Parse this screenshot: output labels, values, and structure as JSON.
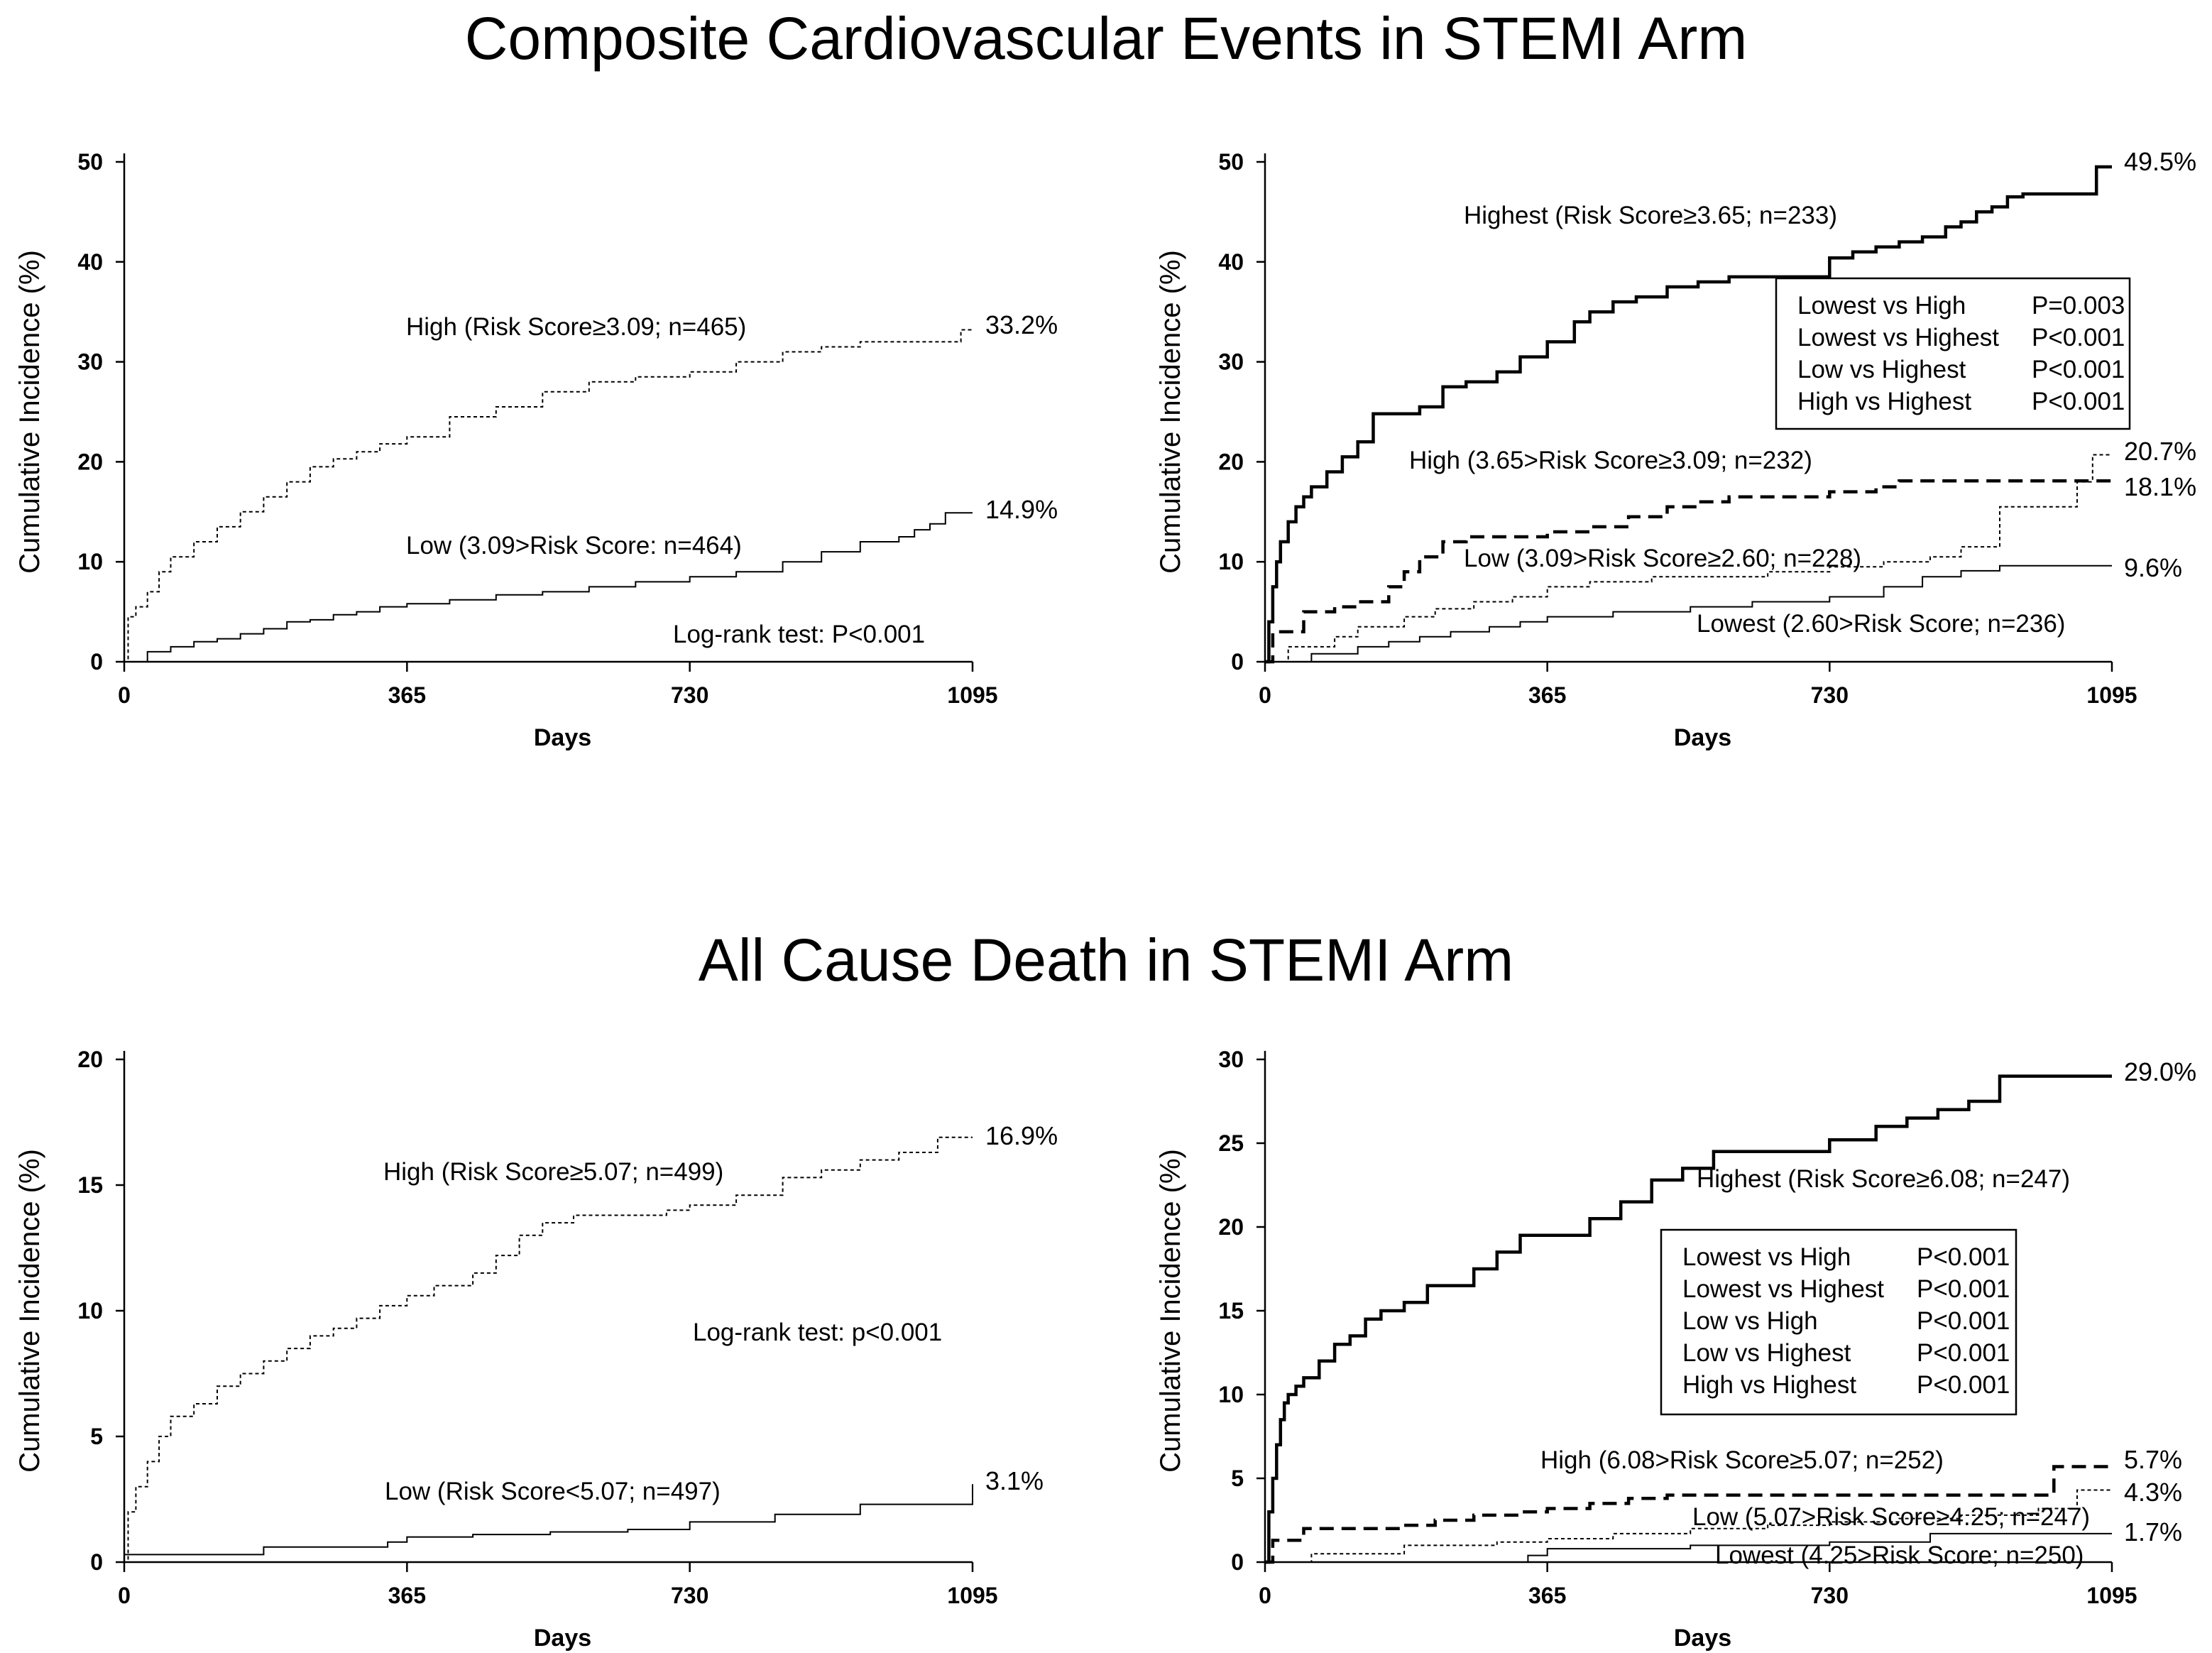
{
  "section_titles": [
    "Composite Cardiovascular Events in STEMI Arm",
    "All Cause Death in STEMI Arm"
  ],
  "chart_data": [
    {
      "type": "line",
      "panel": "top-left",
      "xlabel": "Days",
      "ylabel": "Cumulative Incidence (%)",
      "xlim": [
        0,
        1095
      ],
      "ylim": [
        0,
        50
      ],
      "xticks": [
        "0",
        "365",
        "730",
        "1095"
      ],
      "yticks": [
        "0",
        "10",
        "20",
        "30",
        "40",
        "50"
      ],
      "series": [
        {
          "name": "High (Risk Score≥3.09; n=465)",
          "style": "dotted",
          "end_label": "33.2%",
          "x": [
            0,
            5,
            15,
            30,
            45,
            60,
            90,
            120,
            150,
            180,
            210,
            240,
            270,
            300,
            330,
            365,
            420,
            480,
            540,
            600,
            660,
            730,
            790,
            850,
            900,
            950,
            1000,
            1050,
            1080,
            1095
          ],
          "y": [
            0,
            4.5,
            5.5,
            7.0,
            9.0,
            10.5,
            12.0,
            13.5,
            15.0,
            16.5,
            18.0,
            19.5,
            20.3,
            21.0,
            21.8,
            22.5,
            24.5,
            25.5,
            27.0,
            28.0,
            28.5,
            29.0,
            30.0,
            31.0,
            31.5,
            32.0,
            32.0,
            32.0,
            33.2,
            33.2
          ]
        },
        {
          "name": "Low (3.09>Risk Score: n=464)",
          "style": "solid",
          "end_label": "14.9%",
          "x": [
            0,
            30,
            60,
            90,
            120,
            150,
            180,
            210,
            240,
            270,
            300,
            330,
            365,
            420,
            480,
            540,
            600,
            660,
            730,
            790,
            850,
            900,
            950,
            1000,
            1020,
            1040,
            1060,
            1095
          ],
          "y": [
            0,
            1.0,
            1.5,
            2.0,
            2.3,
            2.8,
            3.3,
            4.0,
            4.2,
            4.7,
            5.0,
            5.5,
            5.8,
            6.2,
            6.7,
            7.0,
            7.5,
            8.0,
            8.5,
            9.0,
            10.0,
            11.0,
            12.0,
            12.5,
            13.2,
            13.8,
            14.9,
            14.9
          ]
        }
      ],
      "annotations": [
        "Log-rank test:  P<0.001"
      ]
    },
    {
      "type": "line",
      "panel": "top-right",
      "xlabel": "Days",
      "ylabel": "Cumulative Incidence (%)",
      "xlim": [
        0,
        1095
      ],
      "ylim": [
        0,
        50
      ],
      "xticks": [
        "0",
        "365",
        "730",
        "1095"
      ],
      "yticks": [
        "0",
        "10",
        "20",
        "30",
        "40",
        "50"
      ],
      "series": [
        {
          "name": "Highest (Risk Score≥3.65; n=233)",
          "style": "thick-solid",
          "end_label": "49.5%",
          "x": [
            0,
            5,
            10,
            15,
            20,
            30,
            40,
            50,
            60,
            80,
            100,
            120,
            140,
            160,
            180,
            200,
            230,
            260,
            300,
            330,
            365,
            400,
            420,
            450,
            480,
            520,
            560,
            600,
            640,
            680,
            730,
            760,
            790,
            820,
            850,
            880,
            900,
            920,
            940,
            960,
            980,
            1000,
            1020,
            1050,
            1075,
            1095
          ],
          "y": [
            0,
            4,
            7.5,
            10,
            12,
            14,
            15.5,
            16.5,
            17.5,
            19,
            20.5,
            22,
            24.8,
            24.8,
            24.8,
            25.5,
            27.5,
            28,
            29,
            30.5,
            32,
            34,
            35,
            36,
            36.5,
            37.5,
            38,
            38.5,
            38.5,
            38.5,
            40.4,
            41,
            41.5,
            42,
            42.5,
            43.5,
            44,
            45,
            45.5,
            46.5,
            46.8,
            46.8,
            46.8,
            46.8,
            49.5,
            49.5
          ]
        },
        {
          "name": "High (3.65>Risk Score≥3.09; n=232)",
          "style": "dashed",
          "end_label": "18.1%",
          "x": [
            0,
            10,
            40,
            50,
            90,
            120,
            160,
            180,
            200,
            230,
            260,
            300,
            340,
            365,
            420,
            470,
            520,
            560,
            600,
            650,
            700,
            730,
            790,
            820,
            850,
            900,
            950,
            1000,
            1050,
            1095
          ],
          "y": [
            0,
            3,
            3,
            5,
            5.5,
            6,
            7.5,
            9,
            10.5,
            12,
            12.5,
            12.5,
            12.5,
            13,
            13.5,
            14.5,
            15.5,
            16,
            16.5,
            16.5,
            16.5,
            17,
            17.5,
            18.1,
            18.1,
            18.1,
            18.1,
            18.1,
            18.1,
            18.1
          ]
        },
        {
          "name": "Low (3.09>Risk Score≥2.60; n=228)",
          "style": "dotted",
          "end_label": "20.7%",
          "x": [
            0,
            30,
            90,
            120,
            180,
            220,
            270,
            320,
            365,
            420,
            500,
            550,
            600,
            650,
            700,
            730,
            800,
            860,
            900,
            950,
            1000,
            1050,
            1070,
            1095
          ],
          "y": [
            0,
            1.5,
            2.5,
            3.5,
            4.5,
            5.3,
            6,
            6.5,
            7.5,
            8,
            8.5,
            8.5,
            8.5,
            9,
            9,
            9.5,
            10,
            10.5,
            11.5,
            15.5,
            15.5,
            18,
            20.7,
            20.7
          ]
        },
        {
          "name": "Lowest (2.60>Risk Score; n=236)",
          "style": "solid",
          "end_label": "9.6%",
          "x": [
            0,
            60,
            120,
            160,
            200,
            240,
            290,
            330,
            365,
            450,
            550,
            630,
            730,
            800,
            850,
            900,
            950,
            1000,
            1095
          ],
          "y": [
            0,
            0.8,
            1.5,
            2,
            2.5,
            3,
            3.5,
            4,
            4.5,
            5,
            5.5,
            6,
            6.5,
            7.5,
            8.5,
            9.1,
            9.6,
            9.6,
            9.6
          ]
        }
      ],
      "legend_box": {
        "rows": [
          {
            "comparison": "Lowest vs High",
            "p": "P=0.003"
          },
          {
            "comparison": "Lowest vs Highest",
            "p": "P<0.001"
          },
          {
            "comparison": "Low vs Highest",
            "p": "P<0.001"
          },
          {
            "comparison": "High vs Highest",
            "p": "P<0.001"
          }
        ]
      }
    },
    {
      "type": "line",
      "panel": "bottom-left",
      "xlabel": "Days",
      "ylabel": "Cumulative Incidence (%)",
      "xlim": [
        0,
        1095
      ],
      "ylim": [
        0,
        20
      ],
      "xticks": [
        "0",
        "365",
        "730",
        "1095"
      ],
      "yticks": [
        "0",
        "5",
        "10",
        "15",
        "20"
      ],
      "series": [
        {
          "name": "High (Risk Score≥5.07; n=499)",
          "style": "dotted",
          "end_label": "16.9%",
          "x": [
            0,
            5,
            15,
            30,
            45,
            60,
            90,
            120,
            150,
            180,
            210,
            240,
            270,
            300,
            330,
            365,
            400,
            450,
            480,
            510,
            540,
            580,
            620,
            660,
            700,
            730,
            790,
            850,
            900,
            950,
            1000,
            1050,
            1095
          ],
          "y": [
            0,
            2,
            3,
            4,
            5,
            5.8,
            6.3,
            7,
            7.5,
            8,
            8.5,
            9,
            9.3,
            9.7,
            10.2,
            10.6,
            11,
            11.5,
            12.2,
            13,
            13.5,
            13.8,
            13.8,
            13.8,
            14,
            14.2,
            14.6,
            15.3,
            15.6,
            16.0,
            16.3,
            16.9,
            16.9
          ]
        },
        {
          "name": "Low (Risk Score<5.07; n=497)",
          "style": "solid",
          "end_label": "3.1%",
          "x": [
            0,
            180,
            340,
            365,
            450,
            550,
            650,
            730,
            840,
            950,
            1095
          ],
          "y": [
            0.3,
            0.6,
            0.8,
            1.0,
            1.1,
            1.2,
            1.3,
            1.6,
            1.9,
            2.3,
            3.1
          ]
        }
      ],
      "annotations": [
        "Log-rank test:  p<0.001"
      ]
    },
    {
      "type": "line",
      "panel": "bottom-right",
      "xlabel": "Days",
      "ylabel": "Cumulative Incidence (%)",
      "xlim": [
        0,
        1095
      ],
      "ylim": [
        0,
        30
      ],
      "xticks": [
        "0",
        "365",
        "730",
        "1095"
      ],
      "yticks": [
        "0",
        "5",
        "10",
        "15",
        "20",
        "25",
        "30"
      ],
      "series": [
        {
          "name": "Highest (Risk Score≥6.08; n=247)",
          "style": "thick-solid",
          "end_label": "29.0%",
          "x": [
            0,
            5,
            10,
            15,
            20,
            25,
            30,
            40,
            50,
            70,
            90,
            110,
            130,
            150,
            180,
            210,
            240,
            270,
            300,
            330,
            365,
            420,
            460,
            500,
            540,
            580,
            620,
            660,
            700,
            730,
            790,
            830,
            870,
            910,
            950,
            1095
          ],
          "y": [
            0,
            3,
            5,
            7,
            8.5,
            9.5,
            10,
            10.5,
            11,
            12,
            13,
            13.5,
            14.5,
            15,
            15.5,
            16.5,
            16.5,
            17.5,
            18.5,
            19.5,
            19.5,
            20.5,
            21.5,
            22.8,
            23.5,
            24.5,
            24.5,
            24.5,
            24.5,
            25.2,
            26,
            26.5,
            27,
            27.5,
            29.0,
            29.0
          ]
        },
        {
          "name": "High (6.08>Risk Score≥5.07; n=252)",
          "style": "dashed",
          "end_label": "5.7%",
          "x": [
            0,
            10,
            50,
            90,
            150,
            180,
            220,
            270,
            330,
            365,
            420,
            470,
            520,
            560,
            600,
            660,
            730,
            790,
            850,
            900,
            950,
            1000,
            1020,
            1095
          ],
          "y": [
            0,
            1.3,
            2,
            2,
            2,
            2.2,
            2.5,
            2.8,
            3,
            3.2,
            3.5,
            3.8,
            4,
            4,
            4,
            4,
            4,
            4,
            4,
            4,
            4,
            4,
            5.7,
            5.7
          ]
        },
        {
          "name": "Low (5.07>Risk Score≥4.25; n=247)",
          "style": "dotted",
          "end_label": "4.3%",
          "x": [
            0,
            60,
            180,
            300,
            365,
            450,
            550,
            650,
            730,
            820,
            900,
            1000,
            1050,
            1095
          ],
          "y": [
            0,
            0.5,
            1,
            1.2,
            1.4,
            1.7,
            2,
            2.2,
            2.4,
            2.6,
            2.8,
            3.2,
            4.3,
            4.3
          ]
        },
        {
          "name": "Lowest (4.25>Risk Score; n=250)",
          "style": "solid",
          "end_label": "1.7%",
          "x": [
            0,
            340,
            365,
            550,
            730,
            860,
            1095
          ],
          "y": [
            0,
            0.4,
            0.8,
            1.0,
            1.2,
            1.7,
            1.7
          ]
        }
      ],
      "legend_box": {
        "rows": [
          {
            "comparison": "Lowest vs High",
            "p": "P<0.001"
          },
          {
            "comparison": "Lowest vs Highest",
            "p": "P<0.001"
          },
          {
            "comparison": "Low vs High",
            "p": "P<0.001"
          },
          {
            "comparison": "Low vs Highest",
            "p": "P<0.001"
          },
          {
            "comparison": "High vs Highest",
            "p": "P<0.001"
          }
        ]
      }
    }
  ]
}
